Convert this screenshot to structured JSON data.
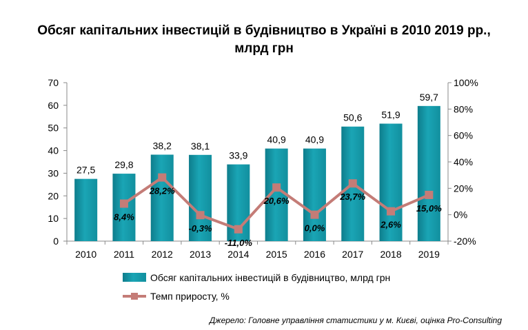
{
  "title_line1": "Обсяг капітальних інвестицій в будівництво в Україні в 2010 2019 рр.,",
  "title_line2": "млрд грн",
  "source": "Джерело: Головне управління статистики у м. Києві, оцінка Pro-Consulting",
  "colors": {
    "bar": "#1aa5b5",
    "line": "#c47c77",
    "axis": "#888888",
    "text": "#000000"
  },
  "chart_data": {
    "type": "bar+line",
    "categories": [
      "2010",
      "2011",
      "2012",
      "2013",
      "2014",
      "2015",
      "2016",
      "2017",
      "2018",
      "2019"
    ],
    "series": [
      {
        "name": "Обсяг капітальних  інвестицій в будівництво, млрд грн",
        "type": "bar",
        "axis": "left",
        "values": [
          27.5,
          29.8,
          38.2,
          38.1,
          33.9,
          40.9,
          40.9,
          50.6,
          51.9,
          59.7
        ],
        "labels": [
          "27,5",
          "29,8",
          "38,2",
          "38,1",
          "33,9",
          "40,9",
          "40,9",
          "50,6",
          "51,9",
          "59,7"
        ]
      },
      {
        "name": "Темп приросту,  %",
        "type": "line",
        "axis": "right",
        "values": [
          null,
          8.4,
          28.2,
          -0.3,
          -11.0,
          20.6,
          0.0,
          23.7,
          2.6,
          15.0
        ],
        "labels": [
          "",
          "8,4%",
          "28,2%",
          "-0,3%",
          "-11,0%",
          "20,6%",
          "0,0%",
          "23,7%",
          "2,6%",
          "15,0%"
        ]
      }
    ],
    "y_left": {
      "min": 0,
      "max": 70,
      "ticks": [
        "0",
        "10",
        "20",
        "30",
        "40",
        "50",
        "60",
        "70"
      ]
    },
    "y_right": {
      "min": -20,
      "max": 100,
      "ticks": [
        "-20%",
        "0%",
        "20%",
        "40%",
        "60%",
        "80%",
        "100%"
      ]
    },
    "legend_position": "bottom-center",
    "grid": false
  }
}
